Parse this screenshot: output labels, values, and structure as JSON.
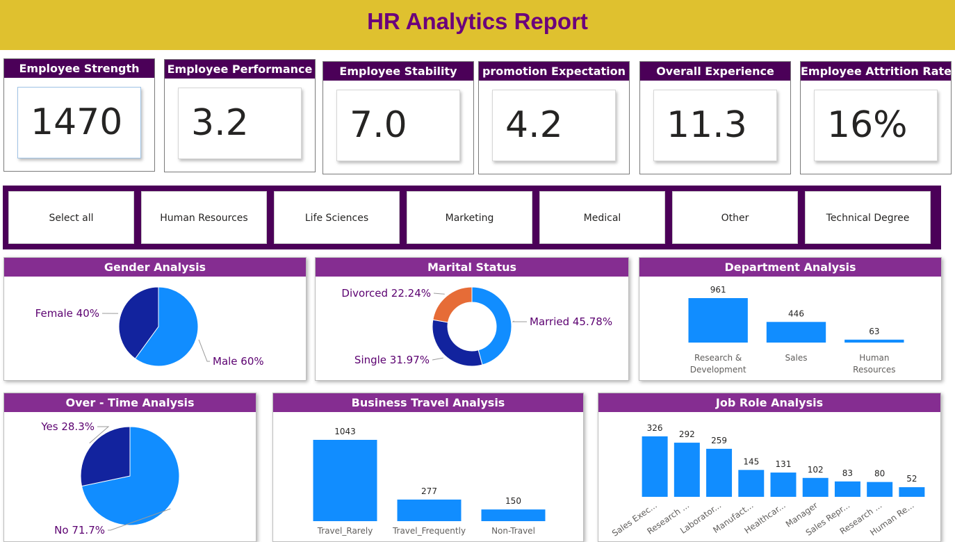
{
  "header": {
    "title": "HR Analytics Report"
  },
  "kpis": [
    {
      "title": "Employee Strength",
      "value": "1470"
    },
    {
      "title": "Employee Performance",
      "value": "3.2"
    },
    {
      "title": "Employee Stability",
      "value": "7.0"
    },
    {
      "title": "promotion Expectation",
      "value": "4.2"
    },
    {
      "title": "Overall Experience",
      "value": "11.3"
    },
    {
      "title": "Employee Attrition Rate",
      "value": "16%"
    }
  ],
  "slicer": {
    "items": [
      "Select all",
      "Human Resources",
      "Life Sciences",
      "Marketing",
      "Medical",
      "Other",
      "Technical Degree"
    ]
  },
  "colors": {
    "header": "#DFC12F",
    "title_text": "#6B007C",
    "kpi_header": "#4B0058",
    "panel_header": "#852D91",
    "bar": "#118DFF",
    "dark": "#12239E",
    "orange": "#E66C37",
    "label": "#5B0070"
  },
  "panels": {
    "gender": {
      "title": "Gender Analysis"
    },
    "marital": {
      "title": "Marital Status"
    },
    "department": {
      "title": "Department Analysis"
    },
    "overtime": {
      "title": "Over - Time Analysis"
    },
    "travel": {
      "title": "Business Travel Analysis"
    },
    "jobrole": {
      "title": "Job Role Analysis"
    }
  },
  "chart_data": [
    {
      "id": "gender",
      "type": "pie",
      "title": "Gender Analysis",
      "slices": [
        {
          "label": "Male",
          "value": 60,
          "display": "Male 60%"
        },
        {
          "label": "Female",
          "value": 40,
          "display": "Female 40%"
        }
      ]
    },
    {
      "id": "marital",
      "type": "pie",
      "donut": true,
      "title": "Marital Status",
      "slices": [
        {
          "label": "Married",
          "value": 45.78,
          "display": "Married 45.78%"
        },
        {
          "label": "Single",
          "value": 31.97,
          "display": "Single 31.97%"
        },
        {
          "label": "Divorced",
          "value": 22.24,
          "display": "Divorced 22.24%"
        }
      ]
    },
    {
      "id": "department",
      "type": "bar",
      "title": "Department Analysis",
      "categories": [
        "Research & Development",
        "Sales",
        "Human Resources"
      ],
      "values": [
        961,
        446,
        63
      ]
    },
    {
      "id": "overtime",
      "type": "pie",
      "title": "Over - Time Analysis",
      "slices": [
        {
          "label": "No",
          "value": 71.7,
          "display": "No 71.7%"
        },
        {
          "label": "Yes",
          "value": 28.3,
          "display": "Yes 28.3%"
        }
      ]
    },
    {
      "id": "travel",
      "type": "bar",
      "title": "Business Travel Analysis",
      "categories": [
        "Travel_Rarely",
        "Travel_Frequently",
        "Non-Travel"
      ],
      "values": [
        1043,
        277,
        150
      ]
    },
    {
      "id": "jobrole",
      "type": "bar",
      "title": "Job Role Analysis",
      "categories": [
        "Sales Exec...",
        "Research ...",
        "Laborator...",
        "Manufact...",
        "Healthcar...",
        "Manager",
        "Sales Repr...",
        "Research ...",
        "Human Re..."
      ],
      "values": [
        326,
        292,
        259,
        145,
        131,
        102,
        83,
        80,
        52
      ]
    }
  ]
}
